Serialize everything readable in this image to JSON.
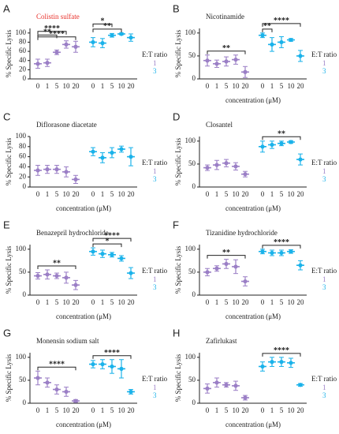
{
  "chart_data": [
    {
      "type": "dot",
      "label": "A",
      "title": "Colistin sulfate",
      "title_color": "#e8302a",
      "y_label": "% Specific Lysis",
      "categories": [
        "0",
        "1",
        "5",
        "10",
        "20"
      ],
      "ylim": [
        0,
        110
      ],
      "yticks": [
        0,
        20,
        40,
        60,
        80,
        100
      ],
      "legend_title": "E:T ratio",
      "series": [
        {
          "name": "1",
          "color": "#9b7fc6",
          "values": [
            33,
            35,
            58,
            75,
            70
          ],
          "errors": [
            10,
            8,
            5,
            8,
            12
          ]
        },
        {
          "name": "3",
          "color": "#1ab2ea",
          "values": [
            80,
            78,
            95,
            98,
            90
          ],
          "errors": [
            10,
            10,
            4,
            2,
            8
          ]
        }
      ],
      "annotations": [
        {
          "text": "****",
          "series": 0,
          "from": 0,
          "to": 4
        },
        {
          "text": "****",
          "series": 0,
          "from": 0,
          "to": 3
        },
        {
          "text": "**",
          "series": 0,
          "from": 0,
          "to": 2
        },
        {
          "text": "**",
          "series": 1,
          "from": 0,
          "to": 3
        },
        {
          "text": "*",
          "series": 1,
          "from": 0,
          "to": 2
        }
      ]
    },
    {
      "type": "dot",
      "label": "B",
      "title": "Nicotinamide",
      "title_color": "#222222",
      "y_label": "% Specific Lysis",
      "x_label": "concentration (μM)",
      "categories": [
        "0",
        "1",
        "5",
        "10",
        "20"
      ],
      "ylim": [
        0,
        110
      ],
      "yticks": [
        0,
        50,
        100
      ],
      "legend_title": "E:T ratio",
      "series": [
        {
          "name": "1",
          "color": "#9b7fc6",
          "values": [
            40,
            33,
            38,
            42,
            15
          ],
          "errors": [
            12,
            8,
            10,
            10,
            12
          ]
        },
        {
          "name": "3",
          "color": "#1ab2ea",
          "values": [
            95,
            75,
            80,
            85,
            50
          ],
          "errors": [
            5,
            15,
            12,
            3,
            12
          ]
        }
      ],
      "annotations": [
        {
          "text": "**",
          "series": 0,
          "from": 0,
          "to": 4
        },
        {
          "text": "**",
          "series": 1,
          "from": 0,
          "to": 1
        },
        {
          "text": "****",
          "series": 1,
          "from": 0,
          "to": 4
        }
      ]
    },
    {
      "type": "dot",
      "label": "C",
      "title": "Diflorasone diacetate",
      "title_color": "#222222",
      "y_label": "% Specific Lysis",
      "x_label": "concentration (μM)",
      "categories": [
        "0",
        "1",
        "5",
        "10",
        "20"
      ],
      "ylim": [
        0,
        100
      ],
      "yticks": [
        0,
        20,
        40,
        60,
        80,
        100
      ],
      "legend_title": "E:T ratio",
      "series": [
        {
          "name": "1",
          "color": "#9b7fc6",
          "values": [
            33,
            35,
            35,
            30,
            15
          ],
          "errors": [
            10,
            8,
            8,
            10,
            8
          ]
        },
        {
          "name": "3",
          "color": "#1ab2ea",
          "values": [
            70,
            58,
            68,
            75,
            60
          ],
          "errors": [
            8,
            10,
            10,
            6,
            18
          ]
        }
      ],
      "annotations": []
    },
    {
      "type": "dot",
      "label": "D",
      "title": "Closantel",
      "title_color": "#222222",
      "y_label": "% Specific Lysis",
      "x_label": "concentration (μM)",
      "categories": [
        "0",
        "1",
        "5",
        "10",
        "20"
      ],
      "ylim": [
        0,
        110
      ],
      "yticks": [
        0,
        50,
        100
      ],
      "legend_title": "E:T ratio",
      "series": [
        {
          "name": "1",
          "color": "#9b7fc6",
          "values": [
            42,
            48,
            52,
            45,
            28
          ],
          "errors": [
            6,
            10,
            8,
            8,
            6
          ]
        },
        {
          "name": "3",
          "color": "#1ab2ea",
          "values": [
            88,
            92,
            95,
            98,
            60
          ],
          "errors": [
            12,
            8,
            5,
            3,
            12
          ]
        }
      ],
      "annotations": [
        {
          "text": "**",
          "series": 1,
          "from": 0,
          "to": 4
        }
      ]
    },
    {
      "type": "dot",
      "label": "E",
      "title": "Benazepril hydrochloride",
      "title_color": "#222222",
      "y_label": "% Specific Lysis",
      "x_label": "concentration (μM)",
      "categories": [
        "0",
        "1",
        "5",
        "10",
        "20"
      ],
      "ylim": [
        0,
        110
      ],
      "yticks": [
        0,
        50,
        100
      ],
      "legend_title": "E:T ratio",
      "series": [
        {
          "name": "1",
          "color": "#9b7fc6",
          "values": [
            42,
            45,
            42,
            38,
            22
          ],
          "errors": [
            7,
            10,
            6,
            12,
            10
          ]
        },
        {
          "name": "3",
          "color": "#1ab2ea",
          "values": [
            95,
            90,
            88,
            80,
            48
          ],
          "errors": [
            8,
            8,
            5,
            6,
            12
          ]
        }
      ],
      "annotations": [
        {
          "text": "**",
          "series": 0,
          "from": 0,
          "to": 4
        },
        {
          "text": "*",
          "series": 1,
          "from": 0,
          "to": 3
        },
        {
          "text": "****",
          "series": 1,
          "from": 0,
          "to": 4
        }
      ]
    },
    {
      "type": "dot",
      "label": "F",
      "title": "Tizanidine hydrochloride",
      "title_color": "#222222",
      "y_label": "% Specific Lysis",
      "x_label": "concentration (μM)",
      "categories": [
        "0",
        "1",
        "5",
        "10",
        "20"
      ],
      "ylim": [
        0,
        110
      ],
      "yticks": [
        0,
        50,
        100
      ],
      "legend_title": "E:T ratio",
      "series": [
        {
          "name": "1",
          "color": "#9b7fc6",
          "values": [
            50,
            58,
            68,
            62,
            30
          ],
          "errors": [
            8,
            6,
            10,
            15,
            10
          ]
        },
        {
          "name": "3",
          "color": "#1ab2ea",
          "values": [
            95,
            92,
            92,
            95,
            65
          ],
          "errors": [
            5,
            6,
            6,
            4,
            10
          ]
        }
      ],
      "annotations": [
        {
          "text": "**",
          "series": 0,
          "from": 0,
          "to": 4
        },
        {
          "text": "****",
          "series": 1,
          "from": 0,
          "to": 4
        }
      ]
    },
    {
      "type": "dot",
      "label": "G",
      "title": "Monensin sodium salt",
      "title_color": "#222222",
      "y_label": "% Specific Lysis",
      "x_label": "concentration (μM)",
      "categories": [
        "0",
        "1",
        "5",
        "10",
        "20"
      ],
      "ylim": [
        0,
        110
      ],
      "yticks": [
        0,
        50,
        100
      ],
      "legend_title": "E:T ratio",
      "series": [
        {
          "name": "1",
          "color": "#9b7fc6",
          "values": [
            55,
            45,
            30,
            25,
            5
          ],
          "errors": [
            15,
            10,
            10,
            10,
            3
          ]
        },
        {
          "name": "3",
          "color": "#1ab2ea",
          "values": [
            85,
            85,
            80,
            75,
            25
          ],
          "errors": [
            8,
            10,
            15,
            20,
            5
          ]
        }
      ],
      "annotations": [
        {
          "text": "****",
          "series": 0,
          "from": 0,
          "to": 4
        },
        {
          "text": "****",
          "series": 1,
          "from": 0,
          "to": 4
        }
      ]
    },
    {
      "type": "dot",
      "label": "H",
      "title": "Zafirlukast",
      "title_color": "#222222",
      "y_label": "% Specific Lysis",
      "x_label": "concentration (μM)",
      "categories": [
        "0",
        "1",
        "5",
        "10",
        "20"
      ],
      "ylim": [
        0,
        110
      ],
      "yticks": [
        0,
        50,
        100
      ],
      "legend_title": "E:T ratio",
      "series": [
        {
          "name": "1",
          "color": "#9b7fc6",
          "values": [
            32,
            45,
            40,
            38,
            12
          ],
          "errors": [
            10,
            10,
            5,
            10,
            5
          ]
        },
        {
          "name": "3",
          "color": "#1ab2ea",
          "values": [
            80,
            90,
            90,
            88,
            40
          ],
          "errors": [
            10,
            10,
            10,
            10,
            3
          ]
        }
      ],
      "annotations": [
        {
          "text": "****",
          "series": 1,
          "from": 0,
          "to": 4
        }
      ]
    }
  ]
}
